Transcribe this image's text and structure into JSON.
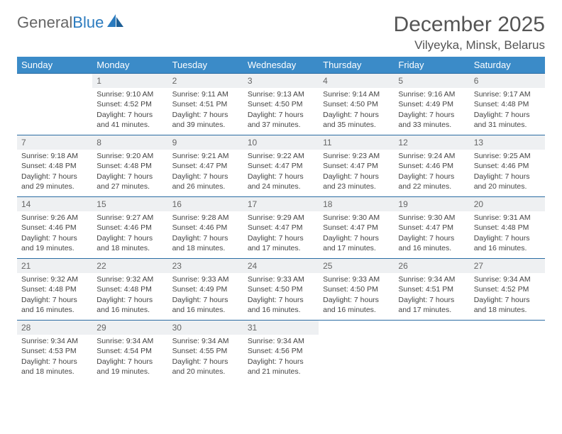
{
  "logo": {
    "general": "General",
    "blue": "Blue"
  },
  "title": "December 2025",
  "location": "Vilyeyka, Minsk, Belarus",
  "colors": {
    "header_bg": "#3b8bc8",
    "header_text": "#ffffff",
    "row_border": "#2b6ca3",
    "daynum_bg": "#eef0f2",
    "text": "#444444",
    "title_text": "#555555",
    "logo_gray": "#666666",
    "logo_blue": "#2b7bbf"
  },
  "weekdays": [
    "Sunday",
    "Monday",
    "Tuesday",
    "Wednesday",
    "Thursday",
    "Friday",
    "Saturday"
  ],
  "weeks": [
    [
      {
        "empty": true
      },
      {
        "num": "1",
        "sunrise": "Sunrise: 9:10 AM",
        "sunset": "Sunset: 4:52 PM",
        "day1": "Daylight: 7 hours",
        "day2": "and 41 minutes."
      },
      {
        "num": "2",
        "sunrise": "Sunrise: 9:11 AM",
        "sunset": "Sunset: 4:51 PM",
        "day1": "Daylight: 7 hours",
        "day2": "and 39 minutes."
      },
      {
        "num": "3",
        "sunrise": "Sunrise: 9:13 AM",
        "sunset": "Sunset: 4:50 PM",
        "day1": "Daylight: 7 hours",
        "day2": "and 37 minutes."
      },
      {
        "num": "4",
        "sunrise": "Sunrise: 9:14 AM",
        "sunset": "Sunset: 4:50 PM",
        "day1": "Daylight: 7 hours",
        "day2": "and 35 minutes."
      },
      {
        "num": "5",
        "sunrise": "Sunrise: 9:16 AM",
        "sunset": "Sunset: 4:49 PM",
        "day1": "Daylight: 7 hours",
        "day2": "and 33 minutes."
      },
      {
        "num": "6",
        "sunrise": "Sunrise: 9:17 AM",
        "sunset": "Sunset: 4:48 PM",
        "day1": "Daylight: 7 hours",
        "day2": "and 31 minutes."
      }
    ],
    [
      {
        "num": "7",
        "sunrise": "Sunrise: 9:18 AM",
        "sunset": "Sunset: 4:48 PM",
        "day1": "Daylight: 7 hours",
        "day2": "and 29 minutes."
      },
      {
        "num": "8",
        "sunrise": "Sunrise: 9:20 AM",
        "sunset": "Sunset: 4:48 PM",
        "day1": "Daylight: 7 hours",
        "day2": "and 27 minutes."
      },
      {
        "num": "9",
        "sunrise": "Sunrise: 9:21 AM",
        "sunset": "Sunset: 4:47 PM",
        "day1": "Daylight: 7 hours",
        "day2": "and 26 minutes."
      },
      {
        "num": "10",
        "sunrise": "Sunrise: 9:22 AM",
        "sunset": "Sunset: 4:47 PM",
        "day1": "Daylight: 7 hours",
        "day2": "and 24 minutes."
      },
      {
        "num": "11",
        "sunrise": "Sunrise: 9:23 AM",
        "sunset": "Sunset: 4:47 PM",
        "day1": "Daylight: 7 hours",
        "day2": "and 23 minutes."
      },
      {
        "num": "12",
        "sunrise": "Sunrise: 9:24 AM",
        "sunset": "Sunset: 4:46 PM",
        "day1": "Daylight: 7 hours",
        "day2": "and 22 minutes."
      },
      {
        "num": "13",
        "sunrise": "Sunrise: 9:25 AM",
        "sunset": "Sunset: 4:46 PM",
        "day1": "Daylight: 7 hours",
        "day2": "and 20 minutes."
      }
    ],
    [
      {
        "num": "14",
        "sunrise": "Sunrise: 9:26 AM",
        "sunset": "Sunset: 4:46 PM",
        "day1": "Daylight: 7 hours",
        "day2": "and 19 minutes."
      },
      {
        "num": "15",
        "sunrise": "Sunrise: 9:27 AM",
        "sunset": "Sunset: 4:46 PM",
        "day1": "Daylight: 7 hours",
        "day2": "and 18 minutes."
      },
      {
        "num": "16",
        "sunrise": "Sunrise: 9:28 AM",
        "sunset": "Sunset: 4:46 PM",
        "day1": "Daylight: 7 hours",
        "day2": "and 18 minutes."
      },
      {
        "num": "17",
        "sunrise": "Sunrise: 9:29 AM",
        "sunset": "Sunset: 4:47 PM",
        "day1": "Daylight: 7 hours",
        "day2": "and 17 minutes."
      },
      {
        "num": "18",
        "sunrise": "Sunrise: 9:30 AM",
        "sunset": "Sunset: 4:47 PM",
        "day1": "Daylight: 7 hours",
        "day2": "and 17 minutes."
      },
      {
        "num": "19",
        "sunrise": "Sunrise: 9:30 AM",
        "sunset": "Sunset: 4:47 PM",
        "day1": "Daylight: 7 hours",
        "day2": "and 16 minutes."
      },
      {
        "num": "20",
        "sunrise": "Sunrise: 9:31 AM",
        "sunset": "Sunset: 4:48 PM",
        "day1": "Daylight: 7 hours",
        "day2": "and 16 minutes."
      }
    ],
    [
      {
        "num": "21",
        "sunrise": "Sunrise: 9:32 AM",
        "sunset": "Sunset: 4:48 PM",
        "day1": "Daylight: 7 hours",
        "day2": "and 16 minutes."
      },
      {
        "num": "22",
        "sunrise": "Sunrise: 9:32 AM",
        "sunset": "Sunset: 4:48 PM",
        "day1": "Daylight: 7 hours",
        "day2": "and 16 minutes."
      },
      {
        "num": "23",
        "sunrise": "Sunrise: 9:33 AM",
        "sunset": "Sunset: 4:49 PM",
        "day1": "Daylight: 7 hours",
        "day2": "and 16 minutes."
      },
      {
        "num": "24",
        "sunrise": "Sunrise: 9:33 AM",
        "sunset": "Sunset: 4:50 PM",
        "day1": "Daylight: 7 hours",
        "day2": "and 16 minutes."
      },
      {
        "num": "25",
        "sunrise": "Sunrise: 9:33 AM",
        "sunset": "Sunset: 4:50 PM",
        "day1": "Daylight: 7 hours",
        "day2": "and 16 minutes."
      },
      {
        "num": "26",
        "sunrise": "Sunrise: 9:34 AM",
        "sunset": "Sunset: 4:51 PM",
        "day1": "Daylight: 7 hours",
        "day2": "and 17 minutes."
      },
      {
        "num": "27",
        "sunrise": "Sunrise: 9:34 AM",
        "sunset": "Sunset: 4:52 PM",
        "day1": "Daylight: 7 hours",
        "day2": "and 18 minutes."
      }
    ],
    [
      {
        "num": "28",
        "sunrise": "Sunrise: 9:34 AM",
        "sunset": "Sunset: 4:53 PM",
        "day1": "Daylight: 7 hours",
        "day2": "and 18 minutes."
      },
      {
        "num": "29",
        "sunrise": "Sunrise: 9:34 AM",
        "sunset": "Sunset: 4:54 PM",
        "day1": "Daylight: 7 hours",
        "day2": "and 19 minutes."
      },
      {
        "num": "30",
        "sunrise": "Sunrise: 9:34 AM",
        "sunset": "Sunset: 4:55 PM",
        "day1": "Daylight: 7 hours",
        "day2": "and 20 minutes."
      },
      {
        "num": "31",
        "sunrise": "Sunrise: 9:34 AM",
        "sunset": "Sunset: 4:56 PM",
        "day1": "Daylight: 7 hours",
        "day2": "and 21 minutes."
      },
      {
        "empty": true
      },
      {
        "empty": true
      },
      {
        "empty": true
      }
    ]
  ]
}
